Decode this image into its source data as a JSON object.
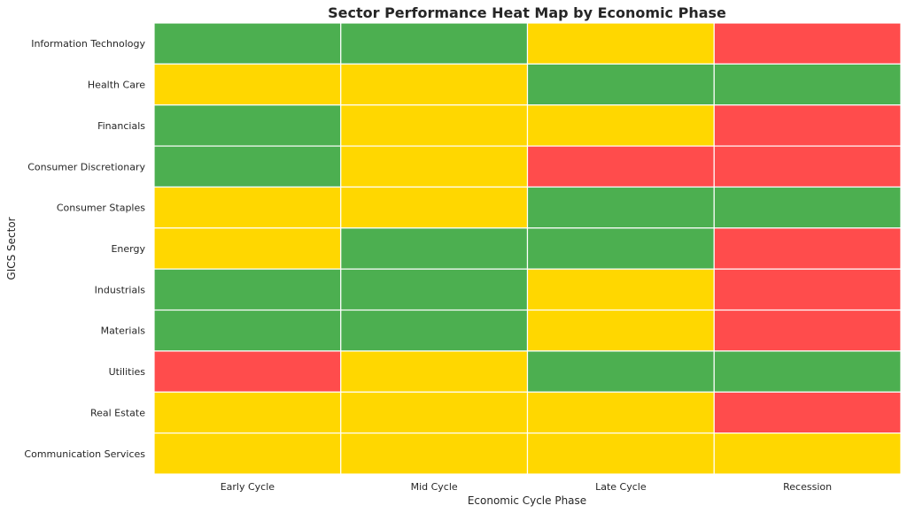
{
  "chart_data": {
    "type": "heatmap",
    "title": "Sector Performance Heat Map by Economic Phase",
    "xlabel": "Economic Cycle Phase",
    "ylabel": "GICS Sector",
    "x_categories": [
      "Early Cycle",
      "Mid Cycle",
      "Late Cycle",
      "Recession"
    ],
    "y_categories": [
      "Information Technology",
      "Health Care",
      "Financials",
      "Consumer Discretionary",
      "Consumer Staples",
      "Energy",
      "Industrials",
      "Materials",
      "Utilities",
      "Real Estate",
      "Communication Services"
    ],
    "values": [
      [
        1,
        1,
        0,
        -1
      ],
      [
        0,
        0,
        1,
        1
      ],
      [
        1,
        0,
        0,
        -1
      ],
      [
        1,
        0,
        -1,
        -1
      ],
      [
        0,
        0,
        1,
        1
      ],
      [
        0,
        1,
        1,
        -1
      ],
      [
        1,
        1,
        0,
        -1
      ],
      [
        1,
        1,
        0,
        -1
      ],
      [
        -1,
        0,
        1,
        1
      ],
      [
        0,
        0,
        0,
        -1
      ],
      [
        0,
        0,
        0,
        0
      ]
    ],
    "color_map": {
      "1": "#4caf50",
      "0": "#ffd700",
      "-1": "#ff4c4c"
    },
    "colorbar": false,
    "grid": false
  }
}
